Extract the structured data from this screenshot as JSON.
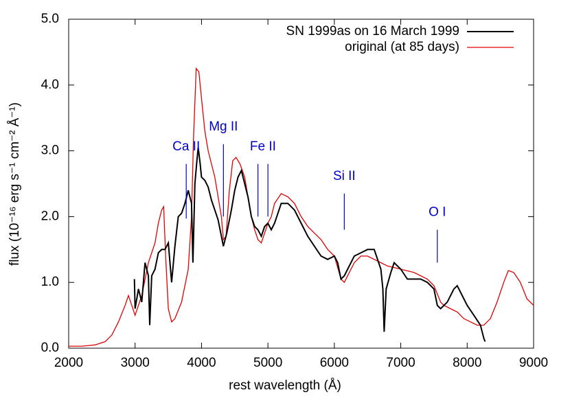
{
  "chart_data": {
    "type": "line",
    "x_label": "rest wavelength (Å)",
    "y_label": "flux (10⁻¹⁶ erg s⁻¹ cm⁻² Å⁻¹)",
    "xlim": [
      2000,
      9000
    ],
    "xticks": [
      2000,
      3000,
      4000,
      5000,
      6000,
      7000,
      8000,
      9000
    ],
    "ylim": [
      0,
      5
    ],
    "yticks": [
      {
        "value": 0,
        "label": "0.0"
      },
      {
        "value": 1,
        "label": "1.0"
      },
      {
        "value": 2,
        "label": "2.0"
      },
      {
        "value": 3,
        "label": "3.0"
      },
      {
        "value": 4,
        "label": "4.0"
      },
      {
        "value": 5,
        "label": "5.0"
      }
    ],
    "legend": "upper right",
    "series": [
      {
        "name": "SN 1999as on 16 March 1999",
        "color": "#000000",
        "x": [
          2990,
          3000,
          3050,
          3100,
          3150,
          3200,
          3220,
          3250,
          3300,
          3350,
          3400,
          3450,
          3500,
          3550,
          3600,
          3650,
          3700,
          3750,
          3800,
          3850,
          3870,
          3900,
          3930,
          3950,
          3980,
          4000,
          4050,
          4100,
          4150,
          4200,
          4250,
          4300,
          4330,
          4380,
          4450,
          4500,
          4550,
          4600,
          4650,
          4700,
          4750,
          4800,
          4850,
          4900,
          4950,
          5000,
          5050,
          5100,
          5200,
          5300,
          5400,
          5500,
          5600,
          5700,
          5800,
          5900,
          6000,
          6050,
          6100,
          6150,
          6200,
          6300,
          6400,
          6500,
          6600,
          6700,
          6730,
          6750,
          6780,
          6850,
          6900,
          7000,
          7100,
          7200,
          7300,
          7400,
          7500,
          7550,
          7600,
          7700,
          7800,
          7850,
          7900,
          8000,
          8100,
          8200,
          8250,
          8270
        ],
        "values": [
          1.05,
          0.6,
          0.9,
          0.7,
          1.3,
          1.1,
          0.35,
          1.1,
          1.2,
          1.45,
          1.5,
          1.5,
          1.6,
          1.0,
          1.55,
          2.0,
          2.05,
          2.2,
          2.4,
          2.2,
          1.3,
          2.5,
          2.85,
          3.05,
          2.8,
          2.6,
          2.55,
          2.45,
          2.25,
          2.1,
          1.95,
          1.7,
          1.55,
          1.75,
          2.1,
          2.4,
          2.6,
          2.7,
          2.5,
          2.3,
          2.0,
          1.85,
          1.8,
          1.7,
          1.85,
          1.9,
          1.8,
          1.9,
          2.2,
          2.2,
          2.1,
          1.9,
          1.7,
          1.55,
          1.4,
          1.35,
          1.4,
          1.3,
          1.05,
          1.1,
          1.2,
          1.4,
          1.45,
          1.5,
          1.5,
          1.2,
          0.9,
          0.25,
          0.9,
          1.15,
          1.3,
          1.2,
          1.05,
          1.05,
          1.05,
          1.0,
          0.9,
          0.65,
          0.6,
          0.7,
          0.9,
          0.95,
          0.85,
          0.65,
          0.5,
          0.35,
          0.15,
          0.1
        ]
      },
      {
        "name": "original (at 85 days)",
        "color": "#e00000",
        "x": [
          2000,
          2200,
          2400,
          2550,
          2650,
          2750,
          2850,
          2900,
          2950,
          3000,
          3100,
          3200,
          3300,
          3350,
          3400,
          3430,
          3460,
          3500,
          3550,
          3600,
          3700,
          3800,
          3850,
          3880,
          3920,
          3960,
          4000,
          4050,
          4100,
          4200,
          4300,
          4330,
          4370,
          4420,
          4470,
          4520,
          4580,
          4650,
          4700,
          4750,
          4800,
          4850,
          4900,
          4950,
          5000,
          5050,
          5100,
          5200,
          5300,
          5400,
          5500,
          5600,
          5700,
          5800,
          5900,
          6000,
          6100,
          6150,
          6200,
          6300,
          6400,
          6500,
          6600,
          6700,
          6800,
          7000,
          7200,
          7400,
          7500,
          7600,
          7650,
          7750,
          7850,
          7950,
          8050,
          8150,
          8250,
          8350,
          8450,
          8550,
          8620,
          8700,
          8800,
          8900,
          9000
        ],
        "values": [
          0.03,
          0.03,
          0.05,
          0.1,
          0.2,
          0.4,
          0.65,
          0.8,
          0.65,
          0.5,
          0.8,
          1.3,
          1.6,
          1.9,
          2.1,
          2.15,
          1.4,
          0.6,
          0.4,
          0.45,
          0.7,
          1.2,
          2.0,
          3.2,
          4.25,
          4.2,
          3.8,
          3.3,
          3.0,
          2.6,
          2.0,
          1.65,
          1.7,
          2.4,
          2.85,
          2.9,
          2.8,
          2.6,
          2.3,
          2.0,
          1.8,
          1.65,
          1.6,
          1.75,
          1.9,
          2.0,
          2.2,
          2.35,
          2.3,
          2.2,
          2.0,
          1.85,
          1.75,
          1.65,
          1.5,
          1.4,
          1.05,
          1.0,
          1.1,
          1.3,
          1.4,
          1.4,
          1.35,
          1.3,
          1.25,
          1.2,
          1.15,
          1.05,
          0.95,
          0.7,
          0.65,
          0.6,
          0.55,
          0.45,
          0.4,
          0.35,
          0.35,
          0.45,
          0.7,
          1.0,
          1.18,
          1.15,
          1.0,
          0.75,
          0.65
        ]
      }
    ],
    "annotation_color": "#0000cc",
    "annotations": [
      {
        "text": "Ca II",
        "x": [
          3770
        ],
        "y": [
          1.97,
          2.8
        ]
      },
      {
        "text": "Mg II",
        "x": [
          4330
        ],
        "y": [
          2.0,
          3.1
        ]
      },
      {
        "text": "Fe II",
        "x": [
          4850,
          5000
        ],
        "y": [
          2.0,
          2.8
        ]
      },
      {
        "text": "Si II",
        "x": [
          6150
        ],
        "y": [
          1.8,
          2.35
        ]
      },
      {
        "text": "O I",
        "x": [
          7550
        ],
        "y": [
          1.3,
          1.8
        ]
      }
    ]
  }
}
